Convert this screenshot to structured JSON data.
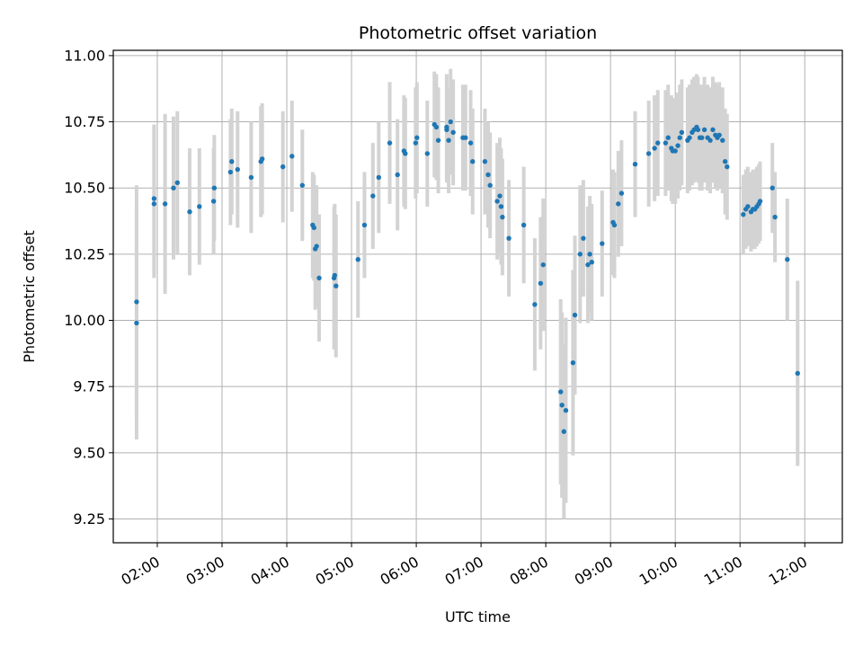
{
  "chart_data": {
    "type": "scatter",
    "title": "Photometric offset variation",
    "xlabel": "UTC time",
    "ylabel": "Photometric offset",
    "grid": true,
    "x_unit": "hours UTC",
    "xlim": [
      1.32,
      12.58
    ],
    "ylim": [
      9.16,
      11.02
    ],
    "x_ticks": [
      2,
      3,
      4,
      5,
      6,
      7,
      8,
      9,
      10,
      11,
      12
    ],
    "x_tick_labels": [
      "02:00",
      "03:00",
      "04:00",
      "05:00",
      "06:00",
      "07:00",
      "08:00",
      "09:00",
      "10:00",
      "11:00",
      "12:00"
    ],
    "y_ticks": [
      9.25,
      9.5,
      9.75,
      10.0,
      10.25,
      10.5,
      10.75,
      11.0
    ],
    "y_tick_labels": [
      "9.25",
      "9.50",
      "9.75",
      "10.00",
      "10.25",
      "10.50",
      "10.75",
      "11.00"
    ],
    "colors": {
      "point": "#1f77b4",
      "errorbar": "#d3d3d3",
      "grid": "#b0b0b0"
    },
    "series": [
      {
        "name": "offset",
        "x": [
          1.68,
          1.68,
          1.95,
          1.95,
          2.12,
          2.25,
          2.31,
          2.5,
          2.65,
          2.87,
          2.88,
          3.13,
          3.15,
          3.24,
          3.45,
          3.6,
          3.62,
          3.94,
          4.08,
          4.24,
          4.4,
          4.42,
          4.44,
          4.46,
          4.5,
          4.73,
          4.74,
          4.76,
          5.1,
          5.2,
          5.33,
          5.42,
          5.59,
          5.71,
          5.81,
          5.83,
          5.99,
          6.01,
          6.17,
          6.28,
          6.31,
          6.34,
          6.47,
          6.47,
          6.5,
          6.53,
          6.57,
          6.72,
          6.76,
          6.84,
          6.87,
          7.06,
          7.11,
          7.14,
          7.25,
          7.29,
          7.31,
          7.33,
          7.43,
          7.66,
          7.83,
          7.92,
          7.96,
          8.23,
          8.25,
          8.28,
          8.31,
          8.42,
          8.45,
          8.53,
          8.58,
          8.65,
          8.68,
          8.71,
          8.87,
          9.04,
          9.06,
          9.12,
          9.17,
          9.38,
          9.59,
          9.68,
          9.73,
          9.85,
          9.89,
          9.94,
          9.96,
          10.0,
          10.04,
          10.07,
          10.1,
          10.19,
          10.22,
          10.26,
          10.29,
          10.33,
          10.35,
          10.38,
          10.41,
          10.45,
          10.5,
          10.54,
          10.58,
          10.62,
          10.65,
          10.68,
          10.73,
          10.77,
          10.8,
          11.05,
          11.09,
          11.12,
          11.17,
          11.2,
          11.23,
          11.26,
          11.29,
          11.31,
          11.5,
          11.54,
          11.73,
          11.89
        ],
        "y": [
          9.99,
          10.07,
          10.44,
          10.46,
          10.44,
          10.5,
          10.52,
          10.41,
          10.43,
          10.45,
          10.5,
          10.56,
          10.6,
          10.57,
          10.54,
          10.6,
          10.61,
          10.58,
          10.62,
          10.51,
          10.36,
          10.35,
          10.27,
          10.28,
          10.16,
          10.16,
          10.17,
          10.13,
          10.23,
          10.36,
          10.47,
          10.54,
          10.67,
          10.55,
          10.64,
          10.63,
          10.67,
          10.69,
          10.63,
          10.74,
          10.73,
          10.68,
          10.73,
          10.72,
          10.68,
          10.75,
          10.71,
          10.69,
          10.69,
          10.67,
          10.6,
          10.6,
          10.55,
          10.51,
          10.45,
          10.47,
          10.43,
          10.39,
          10.31,
          10.36,
          10.06,
          10.14,
          10.21,
          9.73,
          9.68,
          9.58,
          9.66,
          9.84,
          10.02,
          10.25,
          10.31,
          10.21,
          10.25,
          10.22,
          10.29,
          10.37,
          10.36,
          10.44,
          10.48,
          10.59,
          10.63,
          10.65,
          10.67,
          10.67,
          10.69,
          10.65,
          10.64,
          10.64,
          10.66,
          10.69,
          10.71,
          10.68,
          10.69,
          10.71,
          10.72,
          10.73,
          10.72,
          10.69,
          10.69,
          10.72,
          10.69,
          10.68,
          10.72,
          10.7,
          10.69,
          10.7,
          10.68,
          10.6,
          10.58,
          10.4,
          10.42,
          10.43,
          10.41,
          10.42,
          10.42,
          10.43,
          10.44,
          10.45,
          10.5,
          10.39,
          10.23,
          9.8
        ],
        "err": [
          0.44,
          0.44,
          0.28,
          0.28,
          0.34,
          0.27,
          0.27,
          0.24,
          0.22,
          0.2,
          0.2,
          0.2,
          0.2,
          0.22,
          0.21,
          0.21,
          0.21,
          0.21,
          0.21,
          0.21,
          0.2,
          0.2,
          0.23,
          0.23,
          0.24,
          0.27,
          0.27,
          0.27,
          0.22,
          0.2,
          0.2,
          0.21,
          0.23,
          0.21,
          0.21,
          0.21,
          0.21,
          0.21,
          0.2,
          0.2,
          0.2,
          0.2,
          0.2,
          0.2,
          0.2,
          0.2,
          0.2,
          0.2,
          0.2,
          0.2,
          0.2,
          0.2,
          0.2,
          0.2,
          0.22,
          0.22,
          0.22,
          0.22,
          0.22,
          0.22,
          0.25,
          0.25,
          0.25,
          0.35,
          0.35,
          0.33,
          0.35,
          0.35,
          0.3,
          0.26,
          0.22,
          0.22,
          0.22,
          0.22,
          0.2,
          0.2,
          0.2,
          0.2,
          0.2,
          0.2,
          0.2,
          0.2,
          0.2,
          0.2,
          0.2,
          0.2,
          0.2,
          0.2,
          0.2,
          0.2,
          0.2,
          0.2,
          0.2,
          0.2,
          0.2,
          0.2,
          0.2,
          0.2,
          0.2,
          0.2,
          0.2,
          0.2,
          0.2,
          0.2,
          0.2,
          0.2,
          0.2,
          0.2,
          0.2,
          0.15,
          0.15,
          0.15,
          0.15,
          0.15,
          0.15,
          0.15,
          0.15,
          0.15,
          0.17,
          0.17,
          0.23,
          0.35
        ]
      }
    ]
  }
}
